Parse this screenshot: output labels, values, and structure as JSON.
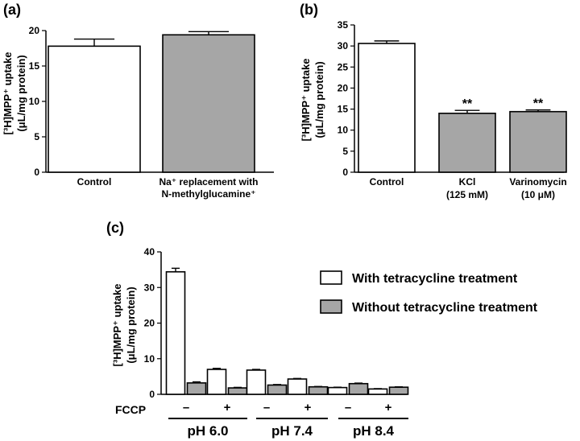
{
  "colors": {
    "with": "#ffffff",
    "without": "#a6a6a6",
    "stroke": "#000000"
  },
  "chart_data": [
    {
      "panel": "(a)",
      "type": "bar",
      "ylabel_line1": "[³H]MPP⁺ uptake",
      "ylabel_line2": "(μL/mg protein)",
      "ylim": [
        0,
        20
      ],
      "yticks": [
        0,
        5,
        10,
        15,
        20
      ],
      "categories": [
        [
          "Control"
        ],
        [
          "Na⁺ replacement with",
          "N-methylglucamine⁺"
        ]
      ],
      "values": [
        17.8,
        19.4
      ],
      "errors": [
        1.0,
        0.45
      ],
      "fills": [
        "with",
        "without"
      ],
      "annotations": [
        "",
        ""
      ]
    },
    {
      "panel": "(b)",
      "type": "bar",
      "ylabel_line1": "[³H]MPP⁺ uptake",
      "ylabel_line2": "(μL/mg protein)",
      "ylim": [
        0,
        35
      ],
      "yticks": [
        0,
        5,
        10,
        15,
        20,
        25,
        30,
        35
      ],
      "categories": [
        [
          "Control"
        ],
        [
          "KCl",
          "(125 mM)"
        ],
        [
          "Varinomycin",
          "(10 μM)"
        ]
      ],
      "values": [
        30.6,
        14.0,
        14.4
      ],
      "errors": [
        0.6,
        0.7,
        0.4
      ],
      "fills": [
        "with",
        "without",
        "without"
      ],
      "annotations": [
        "",
        "**",
        "**"
      ]
    },
    {
      "panel": "(c)",
      "type": "bar",
      "ylabel_line1": "[³H]MPP⁺ uptake",
      "ylabel_line2": "(μL/mg protein)",
      "ylim": [
        0,
        40
      ],
      "yticks": [
        0,
        10,
        20,
        30,
        40
      ],
      "row_label": "FCCP",
      "groups": [
        "pH 6.0",
        "pH 7.4",
        "pH 8.4"
      ],
      "fccp": [
        "–",
        "+"
      ],
      "series": [
        {
          "name": "With tetracycline treatment",
          "fill": "with",
          "values": [
            34.4,
            7.0,
            6.8,
            4.3,
            1.9,
            1.5
          ],
          "errors": [
            1.0,
            0.3,
            0.2,
            0.15,
            0.1,
            0.1
          ]
        },
        {
          "name": "Without tetracycline treatment",
          "fill": "without",
          "values": [
            3.2,
            1.8,
            2.6,
            2.1,
            3.0,
            2.0
          ],
          "errors": [
            0.3,
            0.15,
            0.15,
            0.1,
            0.15,
            0.1
          ]
        }
      ]
    }
  ]
}
